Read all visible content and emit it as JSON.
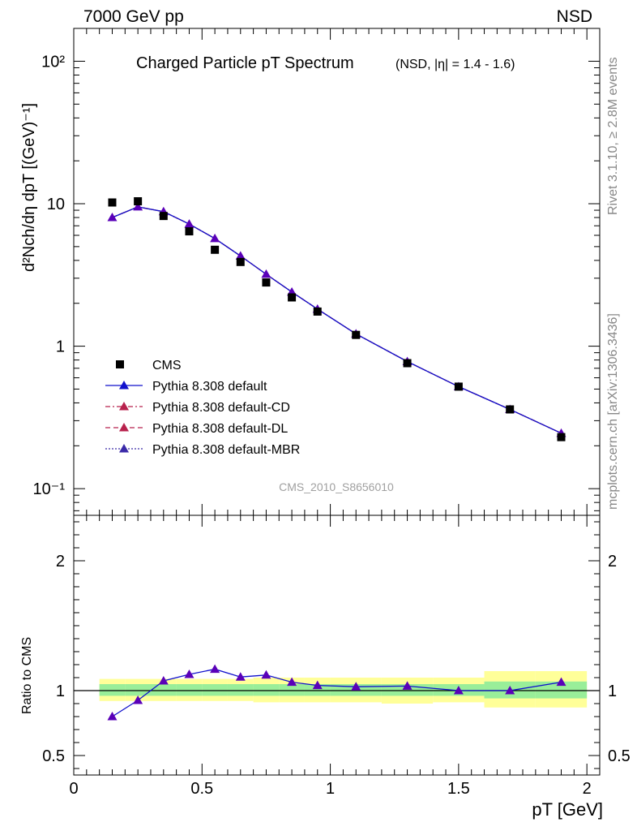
{
  "header": {
    "left": "7000 GeV pp",
    "right": "NSD"
  },
  "side_labels": {
    "top": "Rivet 3.1.10, ≥ 2.8M events",
    "bottom": "mcplots.cern.ch [arXiv:1306.3436]"
  },
  "watermark": "CMS_2010_S8656010",
  "chart_data": [
    {
      "type": "scatter",
      "title": "Charged Particle pT Spectrum",
      "subtitle": "(NSD, |η| = 1.4 - 1.6)",
      "ylabel": "d²Nch/dη dpT [(GeV)⁻¹]",
      "yscale": "log",
      "ylim": [
        0.065,
        170
      ],
      "xlim": [
        0,
        2.05
      ],
      "yticks": [
        "10⁻¹",
        "1",
        "10",
        "10²"
      ],
      "legend_position": "bottom-left",
      "colors": {
        "data": "#000000",
        "default": "#1010cc",
        "cd": "#b8224d",
        "dl": "#b8224d",
        "mbr": "#3b2aa8",
        "marker": "#5a00b8"
      },
      "x": [
        0.15,
        0.25,
        0.35,
        0.45,
        0.55,
        0.65,
        0.75,
        0.85,
        0.95,
        1.1,
        1.3,
        1.5,
        1.7,
        1.9
      ],
      "series": [
        {
          "name": "CMS",
          "values": [
            10.2,
            10.4,
            8.2,
            6.4,
            4.75,
            3.9,
            2.8,
            2.2,
            1.75,
            1.2,
            0.76,
            0.52,
            0.36,
            0.23
          ]
        },
        {
          "name": "Pythia 8.308 default",
          "values": [
            8.0,
            9.5,
            8.8,
            7.2,
            5.7,
            4.3,
            3.2,
            2.4,
            1.82,
            1.22,
            0.78,
            0.52,
            0.36,
            0.245
          ]
        },
        {
          "name": "Pythia 8.308 default-CD",
          "values": [
            8.0,
            9.5,
            8.8,
            7.2,
            5.7,
            4.3,
            3.2,
            2.4,
            1.82,
            1.22,
            0.78,
            0.52,
            0.36,
            0.245
          ]
        },
        {
          "name": "Pythia 8.308 default-DL",
          "values": [
            8.0,
            9.5,
            8.8,
            7.2,
            5.7,
            4.3,
            3.2,
            2.4,
            1.82,
            1.22,
            0.78,
            0.52,
            0.36,
            0.245
          ]
        },
        {
          "name": "Pythia 8.308 default-MBR",
          "values": [
            8.0,
            9.5,
            8.8,
            7.2,
            5.7,
            4.3,
            3.2,
            2.4,
            1.82,
            1.22,
            0.78,
            0.52,
            0.36,
            0.245
          ]
        }
      ]
    },
    {
      "type": "line",
      "ylabel": "Ratio to CMS",
      "xlabel": "pT [GeV]",
      "ylim": [
        0.35,
        2.35
      ],
      "xlim": [
        0,
        2.05
      ],
      "xticks": [
        "0",
        "0.5",
        "1",
        "1.5",
        "2"
      ],
      "yticks": [
        "0.5",
        "1",
        "2"
      ],
      "bands": {
        "edges": [
          0.1,
          0.2,
          0.3,
          0.4,
          0.5,
          0.6,
          0.7,
          0.8,
          0.9,
          1.0,
          1.2,
          1.4,
          1.6,
          1.8,
          2.0
        ],
        "inner": [
          [
            0.96,
            1.05
          ],
          [
            0.96,
            1.05
          ],
          [
            0.96,
            1.05
          ],
          [
            0.96,
            1.05
          ],
          [
            0.96,
            1.05
          ],
          [
            0.96,
            1.05
          ],
          [
            0.96,
            1.05
          ],
          [
            0.96,
            1.05
          ],
          [
            0.96,
            1.05
          ],
          [
            0.96,
            1.05
          ],
          [
            0.96,
            1.05
          ],
          [
            0.96,
            1.05
          ],
          [
            0.94,
            1.07
          ],
          [
            0.94,
            1.07
          ]
        ],
        "outer": [
          [
            0.92,
            1.09
          ],
          [
            0.92,
            1.09
          ],
          [
            0.92,
            1.09
          ],
          [
            0.92,
            1.09
          ],
          [
            0.92,
            1.09
          ],
          [
            0.92,
            1.09
          ],
          [
            0.91,
            1.1
          ],
          [
            0.91,
            1.1
          ],
          [
            0.91,
            1.1
          ],
          [
            0.91,
            1.1
          ],
          [
            0.9,
            1.1
          ],
          [
            0.91,
            1.1
          ],
          [
            0.87,
            1.15
          ],
          [
            0.87,
            1.15
          ]
        ],
        "inner_color": "#99ee99",
        "outer_color": "#ffff99"
      },
      "x": [
        0.15,
        0.25,
        0.35,
        0.45,
        0.55,
        0.65,
        0.75,
        0.85,
        0.95,
        1.1,
        1.3,
        1.5,
        1.7,
        1.9
      ],
      "series": [
        {
          "name": "Pythia 8.308 default",
          "values": [
            0.8,
            0.925,
            1.075,
            1.125,
            1.165,
            1.105,
            1.12,
            1.065,
            1.04,
            1.03,
            1.035,
            1.0,
            1.0,
            1.065
          ]
        }
      ]
    }
  ]
}
